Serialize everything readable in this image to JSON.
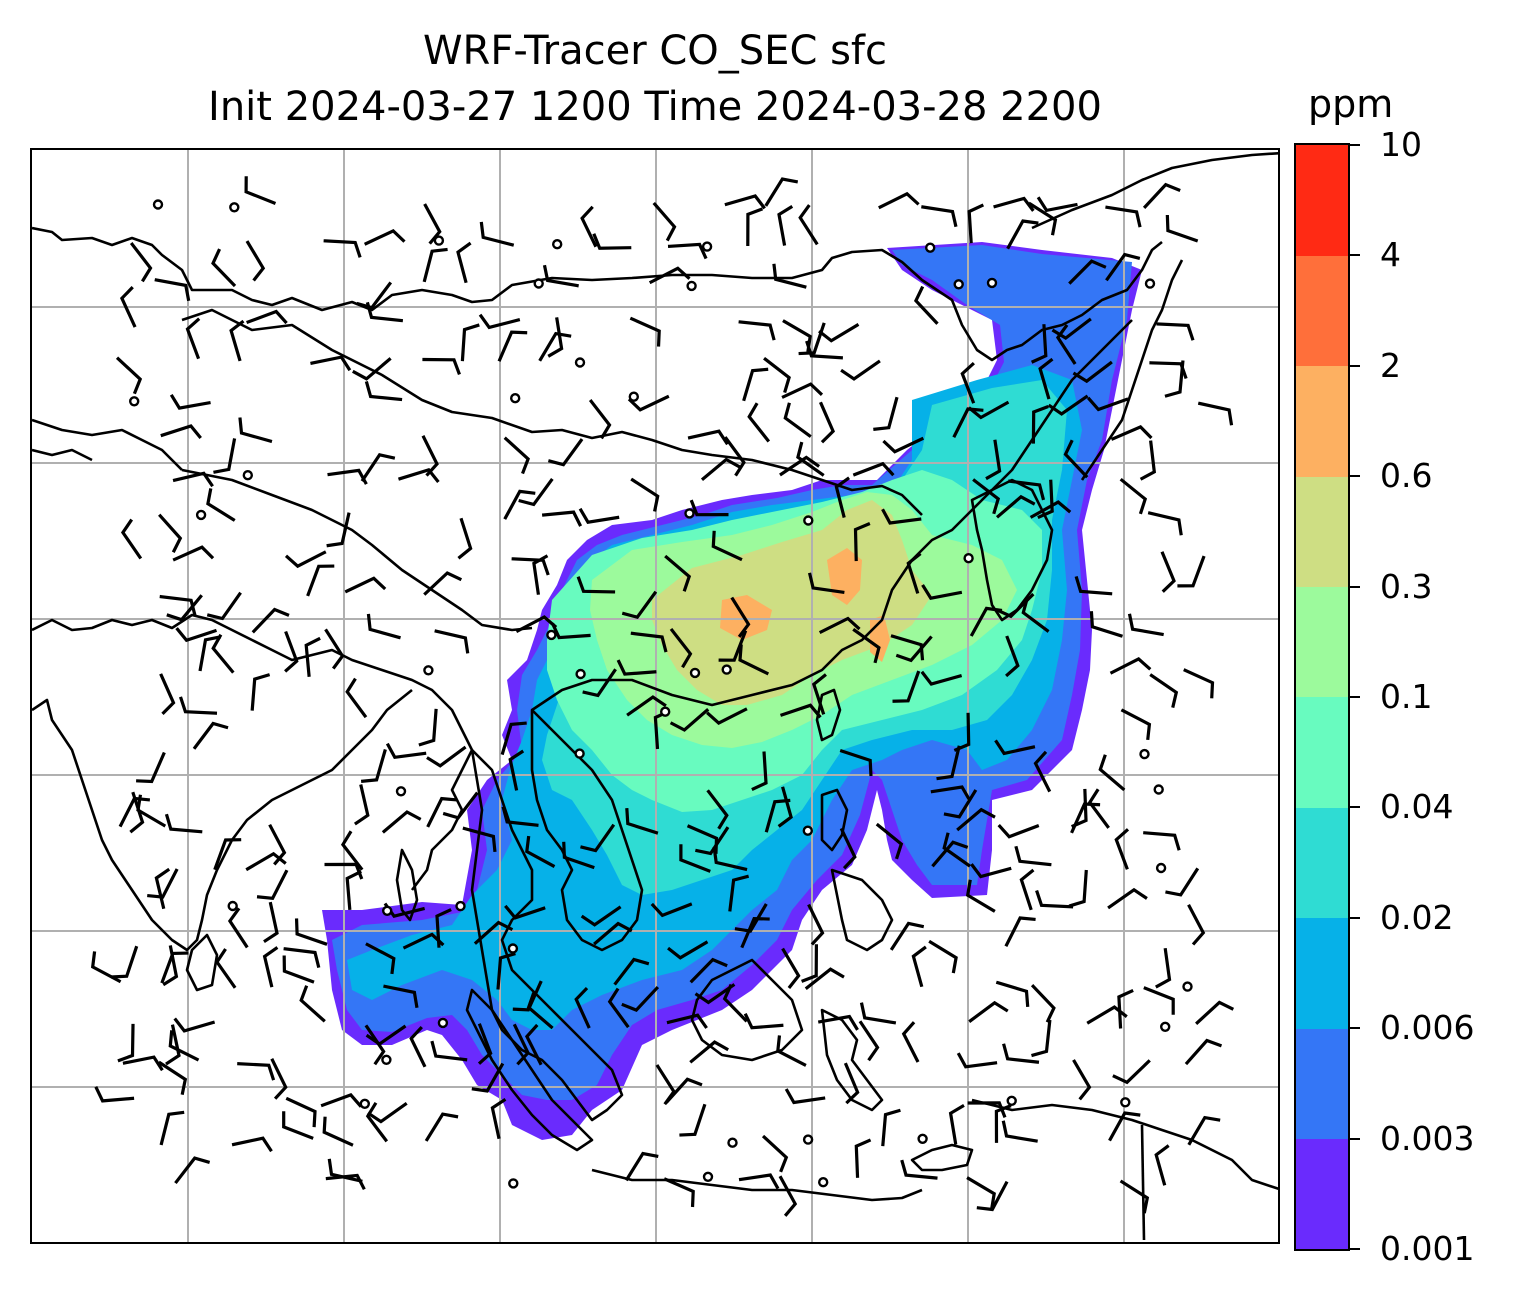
{
  "title": {
    "line1": "WRF-Tracer CO_SEC sfc",
    "line2": "Init 2024-03-27 1200 Time 2024-03-28 2200"
  },
  "colorbar": {
    "unit": "ppm",
    "levels": [
      "0.001",
      "0.003",
      "0.006",
      "0.02",
      "0.04",
      "0.1",
      "0.3",
      "0.6",
      "2",
      "4",
      "10"
    ],
    "colors": [
      "#6a2bfd",
      "#3476f6",
      "#06b1e8",
      "#2fdcd3",
      "#68fbbf",
      "#9cfa9c",
      "#cede83",
      "#fdb061",
      "#ff6f3a",
      "#ff2a14"
    ]
  },
  "map": {
    "gridlines": "on",
    "grid_color": "#b0b0b0",
    "coastline_color": "#000000",
    "wind_barb_color": "#000000"
  }
}
